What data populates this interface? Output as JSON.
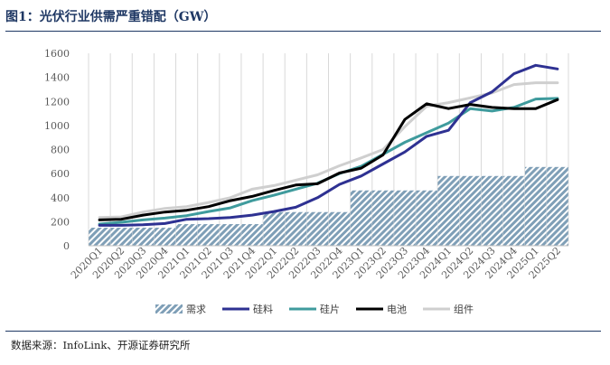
{
  "figure": {
    "title": "图1：光伏行业供需严重错配（GW）",
    "source": "数据来源：InfoLink、开源证券研究所"
  },
  "chart_data": {
    "type": "bar",
    "categories": [
      "2020Q1",
      "2020Q2",
      "2020Q3",
      "2020Q4",
      "2021Q1",
      "2021Q2",
      "2021Q3",
      "2021Q4",
      "2022Q1",
      "2022Q2",
      "2022Q3",
      "2022Q4",
      "2023Q1",
      "2023Q2",
      "2023Q3",
      "2023Q4",
      "2024Q1",
      "2024Q2",
      "2024Q3",
      "2024Q4",
      "2025Q1",
      "2025Q2"
    ],
    "ylim": [
      0,
      1600
    ],
    "yticks": [
      0,
      200,
      400,
      600,
      800,
      1000,
      1200,
      1400,
      1600
    ],
    "grid": "vertical",
    "legend_position": "bottom",
    "bar_series": {
      "name": "需求",
      "color": "#7f9fb7",
      "pattern": "diagonal-hatch",
      "values": [
        150,
        150,
        150,
        150,
        180,
        180,
        180,
        180,
        280,
        280,
        280,
        280,
        460,
        460,
        460,
        460,
        580,
        580,
        580,
        580,
        655,
        655
      ]
    },
    "series": [
      {
        "name": "硅料",
        "type": "line",
        "color": "#2e3192",
        "values": [
          170,
          170,
          175,
          185,
          220,
          225,
          235,
          255,
          285,
          320,
          400,
          510,
          580,
          680,
          780,
          910,
          960,
          1190,
          1280,
          1430,
          1500,
          1470
        ]
      },
      {
        "name": "硅片",
        "type": "line",
        "color": "#3f9b9d",
        "values": [
          180,
          195,
          215,
          230,
          250,
          285,
          315,
          375,
          420,
          470,
          520,
          600,
          660,
          760,
          860,
          940,
          1020,
          1140,
          1120,
          1150,
          1220,
          1225
        ]
      },
      {
        "name": "电池",
        "type": "line",
        "color": "#000000",
        "values": [
          215,
          220,
          255,
          280,
          295,
          325,
          375,
          410,
          460,
          505,
          515,
          605,
          645,
          755,
          1050,
          1180,
          1140,
          1175,
          1150,
          1140,
          1140,
          1215
        ]
      },
      {
        "name": "组件",
        "type": "line",
        "color": "#cfcfcf",
        "values": [
          235,
          240,
          280,
          310,
          325,
          360,
          400,
          470,
          500,
          545,
          590,
          665,
          730,
          800,
          990,
          1160,
          1190,
          1230,
          1270,
          1340,
          1355,
          1355
        ]
      }
    ]
  }
}
